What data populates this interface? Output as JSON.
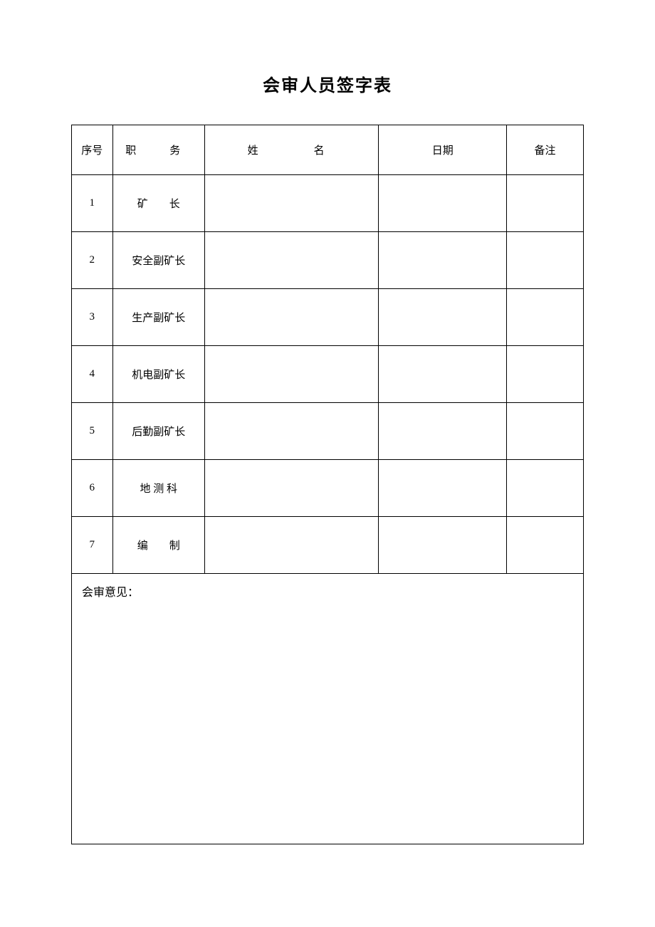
{
  "document": {
    "title": "会审人员签字表",
    "background_color": "#ffffff",
    "border_color": "#000000",
    "title_fontsize": 24,
    "body_fontsize": 15
  },
  "table": {
    "columns": {
      "seq": "序号",
      "position": "职　务",
      "name": "姓　　名",
      "date": "日期",
      "remark": "备注"
    },
    "column_widths": [
      "8%",
      "18%",
      "34%",
      "25%",
      "15%"
    ],
    "rows": [
      {
        "seq": "1",
        "position": "矿　　长",
        "name": "",
        "date": "",
        "remark": ""
      },
      {
        "seq": "2",
        "position": "安全副矿长",
        "name": "",
        "date": "",
        "remark": ""
      },
      {
        "seq": "3",
        "position": "生产副矿长",
        "name": "",
        "date": "",
        "remark": ""
      },
      {
        "seq": "4",
        "position": "机电副矿长",
        "name": "",
        "date": "",
        "remark": ""
      },
      {
        "seq": "5",
        "position": "后勤副矿长",
        "name": "",
        "date": "",
        "remark": ""
      },
      {
        "seq": "6",
        "position": "地 测 科",
        "name": "",
        "date": "",
        "remark": ""
      },
      {
        "seq": "7",
        "position": "编　　制",
        "name": "",
        "date": "",
        "remark": ""
      }
    ],
    "opinion_label": "会审意见：",
    "opinion_content": ""
  }
}
